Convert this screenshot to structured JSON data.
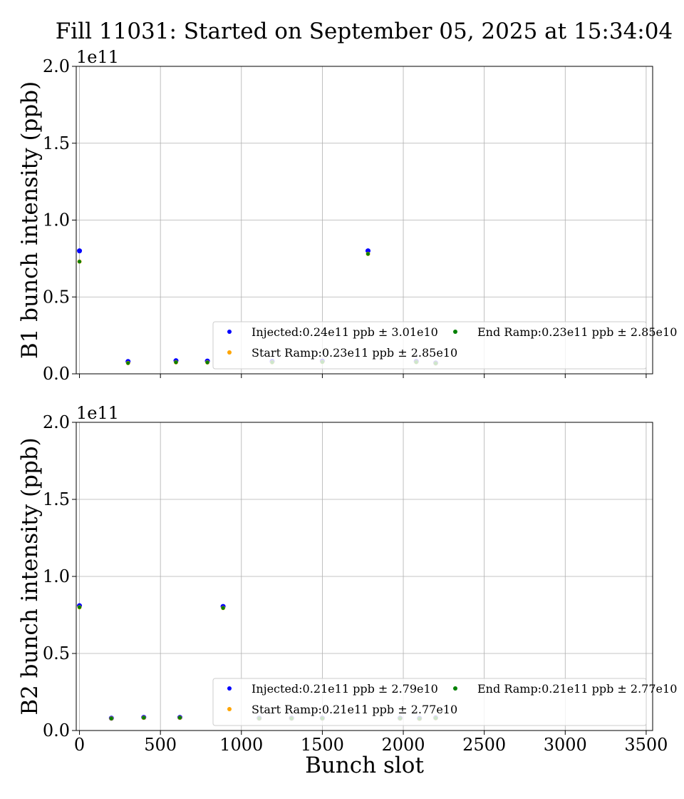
{
  "figure": {
    "title": "Fill 11031: Started on September 05, 2025 at 15:34:04"
  },
  "colors": {
    "injected": "#0000ff",
    "start_ramp": "#ffa500",
    "end_ramp": "#008000",
    "grid": "#b0b0b0",
    "legend_border": "#cccccc"
  },
  "chart_data": [
    {
      "type": "scatter",
      "ylabel": "B1 bunch intensity (ppb)",
      "xlabel": "",
      "offset_label": "1e11",
      "xlim": [
        -20,
        3540
      ],
      "ylim": [
        0,
        2.0
      ],
      "xticks": [
        0,
        500,
        1000,
        1500,
        2000,
        2500,
        3000,
        3500
      ],
      "xtick_labels": [],
      "yticks": [
        0.0,
        0.5,
        1.0,
        1.5,
        2.0
      ],
      "ytick_labels": [
        "0.0",
        "0.5",
        "1.0",
        "1.5",
        "2.0"
      ],
      "grid": true,
      "legend": {
        "placement": "lower-right",
        "entries": [
          "Injected:0.24e11 ppb ± 3.01e10",
          "Start Ramp:0.23e11 ppb ± 2.85e10",
          "End Ramp:0.23e11 ppb ± 2.85e10"
        ]
      },
      "series": [
        {
          "name": "Injected:0.24e11 ppb ± 3.01e10",
          "x": [
            0,
            300,
            596,
            790,
            1190,
            1500,
            1782,
            2080,
            2200
          ],
          "y": [
            0.8,
            0.08,
            0.085,
            0.083,
            0.08,
            0.082,
            0.8,
            0.08,
            0.07
          ]
        },
        {
          "name": "Start Ramp:0.23e11 ppb ± 2.85e10",
          "x": [
            0,
            300,
            596,
            790,
            1190,
            1500,
            1782,
            2080,
            2200
          ],
          "y": [
            0.73,
            0.07,
            0.075,
            0.074,
            0.075,
            0.077,
            0.78,
            0.076,
            0.068
          ]
        },
        {
          "name": "End Ramp:0.23e11 ppb ± 2.85e10",
          "x": [
            0,
            300,
            596,
            790,
            1190,
            1500,
            1782,
            2080,
            2200
          ],
          "y": [
            0.73,
            0.07,
            0.075,
            0.074,
            0.075,
            0.077,
            0.78,
            0.076,
            0.068
          ]
        }
      ]
    },
    {
      "type": "scatter",
      "ylabel": "B2 bunch intensity (ppb)",
      "xlabel": "Bunch slot",
      "offset_label": "1e11",
      "xlim": [
        -20,
        3540
      ],
      "ylim": [
        0,
        2.0
      ],
      "xticks": [
        0,
        500,
        1000,
        1500,
        2000,
        2500,
        3000,
        3500
      ],
      "xtick_labels": [
        "0",
        "500",
        "1000",
        "1500",
        "2000",
        "2500",
        "3000",
        "3500"
      ],
      "yticks": [
        0.0,
        0.5,
        1.0,
        1.5,
        2.0
      ],
      "ytick_labels": [
        "0.0",
        "0.5",
        "1.0",
        "1.5",
        "2.0"
      ],
      "grid": true,
      "legend": {
        "placement": "lower-right",
        "entries": [
          "Injected:0.21e11 ppb ± 2.79e10",
          "Start Ramp:0.21e11 ppb ± 2.77e10",
          "End Ramp:0.21e11 ppb ± 2.77e10"
        ]
      },
      "series": [
        {
          "name": "Injected:0.21e11 ppb ± 2.79e10",
          "x": [
            0,
            197,
            397,
            620,
            887,
            1110,
            1310,
            1500,
            1980,
            2100,
            2200
          ],
          "y": [
            0.81,
            0.08,
            0.085,
            0.085,
            0.805,
            0.08,
            0.08,
            0.08,
            0.08,
            0.078,
            0.082
          ]
        },
        {
          "name": "Start Ramp:0.21e11 ppb ± 2.77e10",
          "x": [
            0,
            197,
            397,
            620,
            887,
            1110,
            1310,
            1500,
            1980,
            2100,
            2200
          ],
          "y": [
            0.8,
            0.078,
            0.083,
            0.083,
            0.795,
            0.078,
            0.078,
            0.078,
            0.078,
            0.076,
            0.08
          ]
        },
        {
          "name": "End Ramp:0.21e11 ppb ± 2.77e10",
          "x": [
            0,
            197,
            397,
            620,
            887,
            1110,
            1310,
            1500,
            1980,
            2100,
            2200
          ],
          "y": [
            0.8,
            0.078,
            0.083,
            0.083,
            0.795,
            0.078,
            0.078,
            0.078,
            0.078,
            0.076,
            0.08
          ]
        }
      ]
    }
  ]
}
